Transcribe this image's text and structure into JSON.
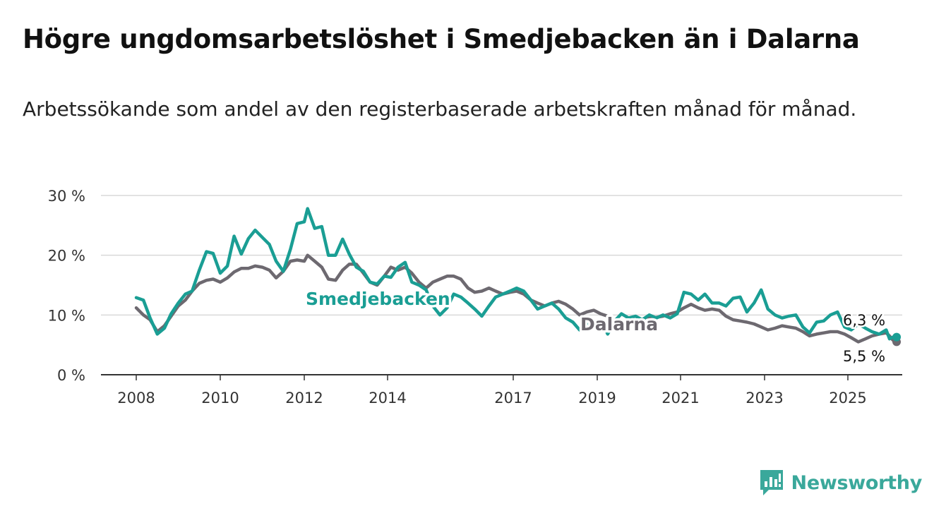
{
  "title": "Högre ungdomsarbetslöshet i Smedjebacken än i Dalarna",
  "subtitle": "Arbetssökande som andel av den registerbaserade arbetskraften månad för månad.",
  "brand": {
    "name": "Newsworthy",
    "icon": "bar-chart-speech-bubble-icon",
    "color": "#3aa89b"
  },
  "chart_data": {
    "type": "line",
    "title": "Högre ungdomsarbetslöshet i Smedjebacken än i Dalarna",
    "subtitle": "Arbetssökande som andel av den registerbaserade arbetskraften månad för månad.",
    "x_ticks": [
      "2008",
      "2010",
      "2012",
      "2014",
      "2017",
      "2019",
      "2021",
      "2023",
      "2025"
    ],
    "y_ticks": [
      "0 %",
      "10 %",
      "20 %",
      "30 %"
    ],
    "ylim": [
      0,
      30
    ],
    "grid": true,
    "series": [
      {
        "name": "Smedjebacken",
        "color": "#1a9e94",
        "end_label": "6,3 %",
        "points": [
          [
            2008.0,
            12.9
          ],
          [
            2008.17,
            12.5
          ],
          [
            2008.33,
            9.5
          ],
          [
            2008.5,
            6.8
          ],
          [
            2008.67,
            7.8
          ],
          [
            2008.83,
            10.2
          ],
          [
            2009.0,
            12.0
          ],
          [
            2009.17,
            13.5
          ],
          [
            2009.33,
            14.0
          ],
          [
            2009.5,
            17.5
          ],
          [
            2009.67,
            20.6
          ],
          [
            2009.83,
            20.3
          ],
          [
            2010.0,
            17.0
          ],
          [
            2010.17,
            18.2
          ],
          [
            2010.33,
            23.2
          ],
          [
            2010.5,
            20.2
          ],
          [
            2010.67,
            22.8
          ],
          [
            2010.83,
            24.2
          ],
          [
            2011.0,
            23.0
          ],
          [
            2011.17,
            21.8
          ],
          [
            2011.33,
            19.0
          ],
          [
            2011.5,
            17.3
          ],
          [
            2011.67,
            21.0
          ],
          [
            2011.83,
            25.3
          ],
          [
            2012.0,
            25.6
          ],
          [
            2012.08,
            27.8
          ],
          [
            2012.25,
            24.5
          ],
          [
            2012.42,
            24.8
          ],
          [
            2012.58,
            20.0
          ],
          [
            2012.75,
            20.0
          ],
          [
            2012.92,
            22.7
          ],
          [
            2013.08,
            20.2
          ],
          [
            2013.25,
            18.0
          ],
          [
            2013.42,
            17.3
          ],
          [
            2013.58,
            15.5
          ],
          [
            2013.75,
            15.2
          ],
          [
            2013.92,
            16.5
          ],
          [
            2014.08,
            16.3
          ],
          [
            2014.25,
            18.0
          ],
          [
            2014.42,
            18.8
          ],
          [
            2014.58,
            15.5
          ],
          [
            2014.75,
            15.0
          ],
          [
            2014.92,
            14.2
          ],
          [
            2015.08,
            11.5
          ],
          [
            2015.25,
            10.0
          ],
          [
            2015.42,
            11.2
          ],
          [
            2015.58,
            13.5
          ],
          [
            2015.75,
            13.0
          ],
          [
            2015.92,
            12.0
          ],
          [
            2016.08,
            11.0
          ],
          [
            2016.25,
            9.8
          ],
          [
            2016.42,
            11.5
          ],
          [
            2016.58,
            13.0
          ],
          [
            2016.75,
            13.5
          ],
          [
            2016.92,
            14.0
          ],
          [
            2017.08,
            14.5
          ],
          [
            2017.25,
            14.0
          ],
          [
            2017.42,
            12.5
          ],
          [
            2017.58,
            11.0
          ],
          [
            2017.75,
            11.5
          ],
          [
            2017.92,
            12.0
          ],
          [
            2018.08,
            11.0
          ],
          [
            2018.25,
            9.5
          ],
          [
            2018.42,
            8.8
          ],
          [
            2018.58,
            7.5
          ],
          [
            2018.75,
            8.5
          ],
          [
            2018.92,
            8.0
          ],
          [
            2019.08,
            9.2
          ],
          [
            2019.25,
            6.8
          ],
          [
            2019.42,
            9.0
          ],
          [
            2019.58,
            10.2
          ],
          [
            2019.75,
            9.5
          ],
          [
            2019.92,
            9.8
          ],
          [
            2020.08,
            9.2
          ],
          [
            2020.25,
            10.0
          ],
          [
            2020.42,
            9.5
          ],
          [
            2020.58,
            10.0
          ],
          [
            2020.75,
            9.5
          ],
          [
            2020.92,
            10.2
          ],
          [
            2021.08,
            13.8
          ],
          [
            2021.25,
            13.5
          ],
          [
            2021.42,
            12.5
          ],
          [
            2021.58,
            13.5
          ],
          [
            2021.75,
            12.0
          ],
          [
            2021.92,
            12.0
          ],
          [
            2022.08,
            11.5
          ],
          [
            2022.25,
            12.8
          ],
          [
            2022.42,
            13.0
          ],
          [
            2022.58,
            10.5
          ],
          [
            2022.75,
            12.0
          ],
          [
            2022.92,
            14.2
          ],
          [
            2023.08,
            11.0
          ],
          [
            2023.25,
            10.0
          ],
          [
            2023.42,
            9.5
          ],
          [
            2023.58,
            9.8
          ],
          [
            2023.75,
            10.0
          ],
          [
            2023.92,
            8.0
          ],
          [
            2024.08,
            7.0
          ],
          [
            2024.25,
            8.8
          ],
          [
            2024.42,
            9.0
          ],
          [
            2024.58,
            10.0
          ],
          [
            2024.75,
            10.5
          ],
          [
            2024.92,
            8.0
          ],
          [
            2025.08,
            7.5
          ],
          [
            2025.25,
            8.5
          ],
          [
            2025.42,
            7.8
          ],
          [
            2025.58,
            7.2
          ],
          [
            2025.75,
            6.8
          ],
          [
            2025.92,
            7.5
          ],
          [
            2026.0,
            6.0
          ],
          [
            2026.08,
            6.3
          ],
          [
            2026.17,
            6.3
          ]
        ]
      },
      {
        "name": "Dalarna",
        "color": "#6d6970",
        "end_label": "5,5 %",
        "points": [
          [
            2008.0,
            11.2
          ],
          [
            2008.17,
            10.0
          ],
          [
            2008.33,
            9.2
          ],
          [
            2008.5,
            7.2
          ],
          [
            2008.67,
            8.2
          ],
          [
            2008.83,
            9.8
          ],
          [
            2009.0,
            11.5
          ],
          [
            2009.17,
            12.5
          ],
          [
            2009.33,
            14.0
          ],
          [
            2009.5,
            15.3
          ],
          [
            2009.67,
            15.8
          ],
          [
            2009.83,
            16.0
          ],
          [
            2010.0,
            15.5
          ],
          [
            2010.17,
            16.2
          ],
          [
            2010.33,
            17.2
          ],
          [
            2010.5,
            17.8
          ],
          [
            2010.67,
            17.8
          ],
          [
            2010.83,
            18.2
          ],
          [
            2011.0,
            18.0
          ],
          [
            2011.17,
            17.5
          ],
          [
            2011.33,
            16.2
          ],
          [
            2011.5,
            17.3
          ],
          [
            2011.67,
            19.0
          ],
          [
            2011.83,
            19.2
          ],
          [
            2012.0,
            19.0
          ],
          [
            2012.08,
            20.0
          ],
          [
            2012.25,
            19.0
          ],
          [
            2012.42,
            18.0
          ],
          [
            2012.58,
            16.0
          ],
          [
            2012.75,
            15.8
          ],
          [
            2012.92,
            17.5
          ],
          [
            2013.08,
            18.5
          ],
          [
            2013.25,
            18.5
          ],
          [
            2013.42,
            17.0
          ],
          [
            2013.58,
            15.5
          ],
          [
            2013.75,
            15.0
          ],
          [
            2013.92,
            16.5
          ],
          [
            2014.08,
            18.0
          ],
          [
            2014.25,
            17.5
          ],
          [
            2014.42,
            18.0
          ],
          [
            2014.58,
            17.0
          ],
          [
            2014.75,
            15.5
          ],
          [
            2014.92,
            14.5
          ],
          [
            2015.08,
            15.5
          ],
          [
            2015.25,
            16.0
          ],
          [
            2015.42,
            16.5
          ],
          [
            2015.58,
            16.5
          ],
          [
            2015.75,
            16.0
          ],
          [
            2015.92,
            14.5
          ],
          [
            2016.08,
            13.8
          ],
          [
            2016.25,
            14.0
          ],
          [
            2016.42,
            14.5
          ],
          [
            2016.58,
            14.0
          ],
          [
            2016.75,
            13.5
          ],
          [
            2016.92,
            13.8
          ],
          [
            2017.08,
            14.0
          ],
          [
            2017.25,
            13.5
          ],
          [
            2017.42,
            12.5
          ],
          [
            2017.58,
            12.0
          ],
          [
            2017.75,
            11.5
          ],
          [
            2017.92,
            12.0
          ],
          [
            2018.08,
            12.3
          ],
          [
            2018.25,
            11.8
          ],
          [
            2018.42,
            11.0
          ],
          [
            2018.58,
            10.0
          ],
          [
            2018.75,
            10.5
          ],
          [
            2018.92,
            10.8
          ],
          [
            2019.08,
            10.2
          ],
          [
            2019.25,
            9.8
          ],
          [
            2019.42,
            9.0
          ],
          [
            2019.58,
            8.5
          ],
          [
            2019.75,
            8.8
          ],
          [
            2019.92,
            9.0
          ],
          [
            2020.08,
            9.2
          ],
          [
            2020.25,
            9.4
          ],
          [
            2020.42,
            9.6
          ],
          [
            2020.58,
            9.8
          ],
          [
            2020.75,
            10.2
          ],
          [
            2020.92,
            10.5
          ],
          [
            2021.08,
            11.2
          ],
          [
            2021.25,
            11.8
          ],
          [
            2021.42,
            11.2
          ],
          [
            2021.58,
            10.8
          ],
          [
            2021.75,
            11.0
          ],
          [
            2021.92,
            10.8
          ],
          [
            2022.08,
            9.8
          ],
          [
            2022.25,
            9.2
          ],
          [
            2022.42,
            9.0
          ],
          [
            2022.58,
            8.8
          ],
          [
            2022.75,
            8.5
          ],
          [
            2022.92,
            8.0
          ],
          [
            2023.08,
            7.5
          ],
          [
            2023.25,
            7.8
          ],
          [
            2023.42,
            8.2
          ],
          [
            2023.58,
            8.0
          ],
          [
            2023.75,
            7.8
          ],
          [
            2023.92,
            7.2
          ],
          [
            2024.08,
            6.5
          ],
          [
            2024.25,
            6.8
          ],
          [
            2024.42,
            7.0
          ],
          [
            2024.58,
            7.2
          ],
          [
            2024.75,
            7.2
          ],
          [
            2024.92,
            6.8
          ],
          [
            2025.08,
            6.2
          ],
          [
            2025.25,
            5.5
          ],
          [
            2025.42,
            6.0
          ],
          [
            2025.58,
            6.5
          ],
          [
            2025.75,
            6.8
          ],
          [
            2025.92,
            7.0
          ],
          [
            2026.0,
            6.5
          ],
          [
            2026.08,
            5.8
          ],
          [
            2026.17,
            5.5
          ]
        ]
      }
    ]
  }
}
